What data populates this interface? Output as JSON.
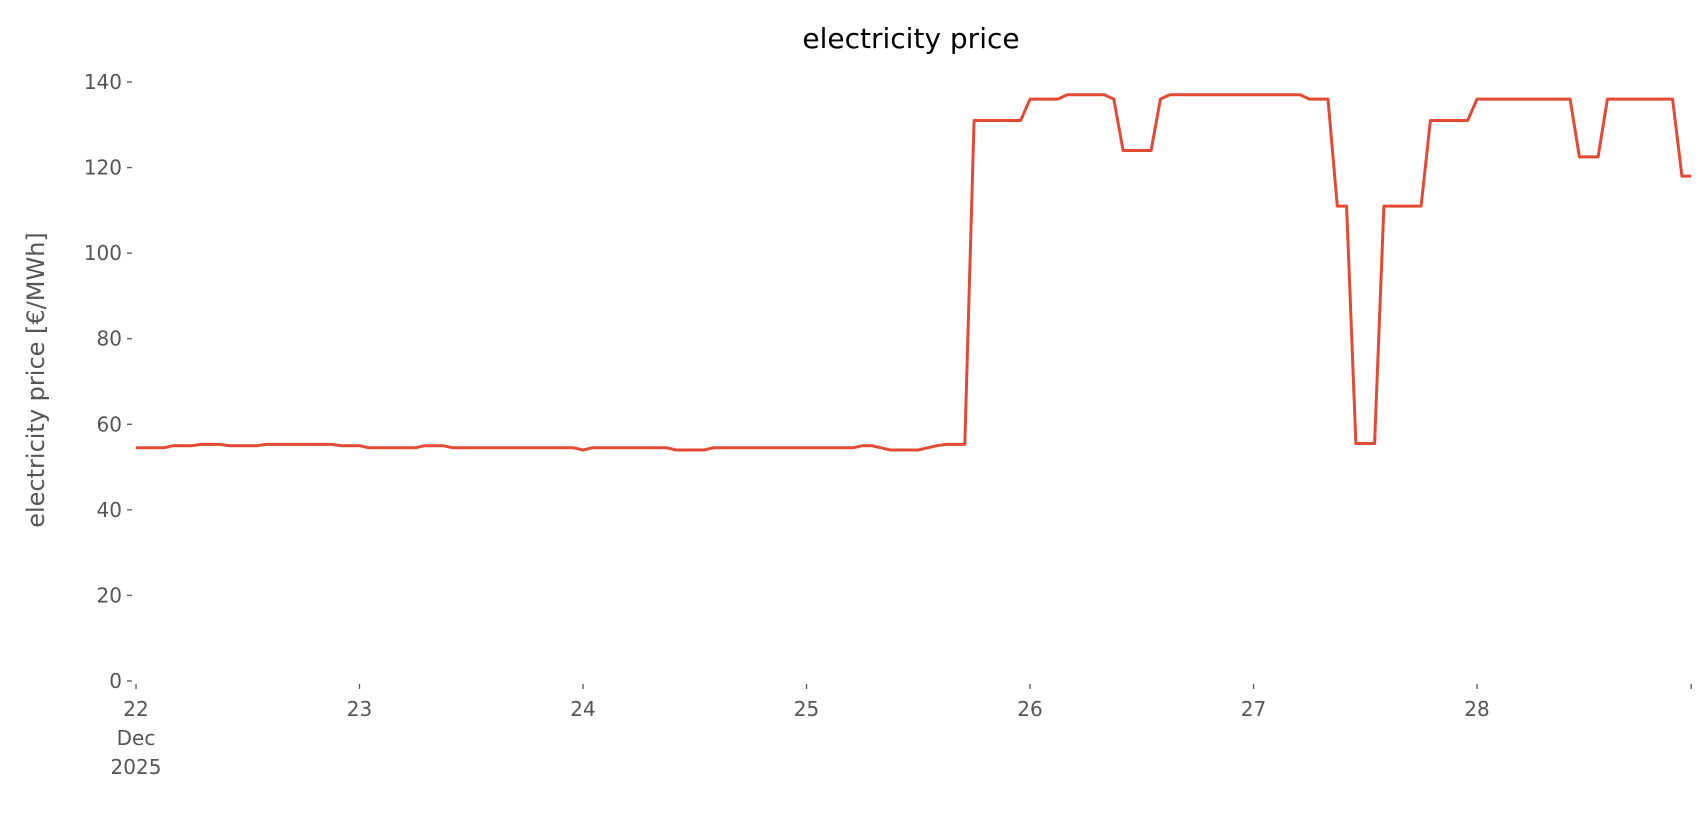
{
  "chart_data": {
    "type": "line",
    "title": "electricity price",
    "xlabel": "",
    "ylabel": "electricity price [€/MWh]",
    "ylim": [
      0,
      140
    ],
    "yticks": [
      0,
      20,
      40,
      60,
      80,
      100,
      120,
      140
    ],
    "xticks": [
      {
        "day": 22,
        "label": [
          "22",
          "Dec",
          "2025"
        ]
      },
      {
        "day": 23,
        "label": [
          "23"
        ]
      },
      {
        "day": 24,
        "label": [
          "24"
        ]
      },
      {
        "day": 25,
        "label": [
          "25"
        ]
      },
      {
        "day": 26,
        "label": [
          "26"
        ]
      },
      {
        "day": 27,
        "label": [
          "27"
        ]
      },
      {
        "day": 28,
        "label": [
          "28"
        ]
      }
    ],
    "grid": false,
    "line_color": "#E24A33",
    "series": [
      {
        "start": "2025-12-22 00:00",
        "freq": "1h",
        "values": [
          54.5,
          54.5,
          54.5,
          54.5,
          55,
          55,
          55,
          55.3,
          55.3,
          55.3,
          55,
          55,
          55,
          55,
          55.3,
          55.3,
          55.3,
          55.3,
          55.3,
          55.3,
          55.3,
          55.3,
          55,
          55,
          55,
          54.5,
          54.5,
          54.5,
          54.5,
          54.5,
          54.5,
          55,
          55,
          55,
          54.5,
          54.5,
          54.5,
          54.5,
          54.5,
          54.5,
          54.5,
          54.5,
          54.5,
          54.5,
          54.5,
          54.5,
          54.5,
          54.5,
          54,
          54.5,
          54.5,
          54.5,
          54.5,
          54.5,
          54.5,
          54.5,
          54.5,
          54.5,
          54,
          54,
          54,
          54,
          54.5,
          54.5,
          54.5,
          54.5,
          54.5,
          54.5,
          54.5,
          54.5,
          54.5,
          54.5,
          54.5,
          54.5,
          54.5,
          54.5,
          54.5,
          54.5,
          55,
          55,
          54.5,
          54,
          54,
          54,
          54,
          54.5,
          55,
          55.3,
          55.3,
          55.3,
          131,
          131,
          131,
          131,
          131,
          131,
          136,
          136,
          136,
          136,
          137,
          137,
          137,
          137,
          137,
          136,
          124,
          124,
          124,
          124,
          136,
          137,
          137,
          137,
          137,
          137,
          137,
          137,
          137,
          137,
          137,
          137,
          137,
          137,
          137,
          137,
          136,
          136,
          136,
          111,
          111,
          55.5,
          55.5,
          55.5,
          111,
          111,
          111,
          111,
          111,
          131,
          131,
          131,
          131,
          131,
          136,
          136,
          136,
          136,
          136,
          136,
          136,
          136,
          136,
          136,
          136,
          122.5,
          122.5,
          122.5,
          136,
          136,
          136,
          136,
          136,
          136,
          136,
          136,
          118,
          118
        ]
      }
    ]
  }
}
